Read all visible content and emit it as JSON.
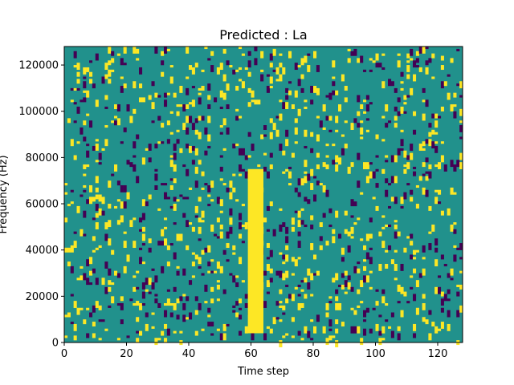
{
  "chart_data": {
    "type": "heatmap",
    "title": "Predicted : La",
    "xlabel": "Time step",
    "ylabel": "Frequency (Hz)",
    "xlim": [
      0,
      128
    ],
    "ylim": [
      0,
      128000
    ],
    "xticks": [
      0,
      20,
      40,
      60,
      80,
      100,
      120
    ],
    "yticks": [
      0,
      20000,
      40000,
      60000,
      80000,
      100000,
      120000
    ],
    "colorscale": {
      "low": "#440154",
      "mid": "#21918c",
      "high": "#fde725"
    },
    "background_level": "mid",
    "dominant_column": {
      "x": [
        59,
        64
      ],
      "y": [
        4000,
        75000
      ],
      "level": "high"
    },
    "sparse_pattern": {
      "level_high_fraction": 0.045,
      "level_low_fraction": 0.035,
      "rows": 128,
      "cols": 128
    },
    "grid": false,
    "legend": "none"
  }
}
